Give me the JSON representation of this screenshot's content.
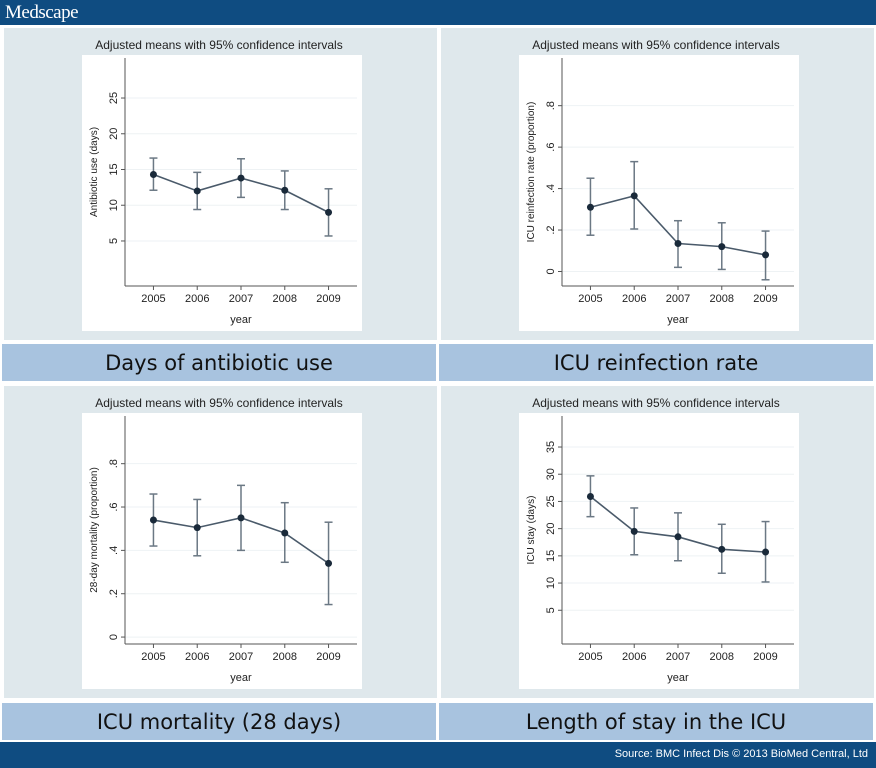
{
  "header": {
    "logo": "Medscape"
  },
  "footer": {
    "source": "Source: BMC Infect Dis © 2013 BioMed Central, Ltd"
  },
  "colors": {
    "header": "#0f4c81",
    "label_bar": "#a8c3df",
    "panel": "#dfe8ec",
    "line": "#4a5a6a",
    "marker": "#1a2a3a"
  },
  "labels": [
    "Days of antibiotic use",
    "ICU reinfection rate",
    "ICU mortality (28 days)",
    "Length of stay in the ICU"
  ],
  "chart_data": [
    {
      "type": "line",
      "title": "Adjusted means with 95% confidence intervals",
      "xlabel": "year",
      "ylabel": "Antibiotic use (days)",
      "x": [
        2005,
        2006,
        2007,
        2008,
        2009
      ],
      "values": [
        14.3,
        12.0,
        13.8,
        12.1,
        9.0
      ],
      "ci_low": [
        12.1,
        9.4,
        11.1,
        9.4,
        5.7
      ],
      "ci_high": [
        16.6,
        14.6,
        16.5,
        14.8,
        12.3
      ],
      "yticks": [
        5,
        10,
        15,
        20,
        25
      ],
      "ytick_labels": [
        "5",
        "10",
        "15",
        "20",
        "25"
      ],
      "ylim": [
        -1.3,
        30.6
      ],
      "xlim": [
        2004.35,
        2009.65
      ],
      "grid": true
    },
    {
      "type": "line",
      "title": "Adjusted means with 95% confidence intervals",
      "xlabel": "year",
      "ylabel": "ICU reinfection rate (proportion)",
      "x": [
        2005,
        2006,
        2007,
        2008,
        2009
      ],
      "values": [
        0.31,
        0.365,
        0.135,
        0.12,
        0.08
      ],
      "ci_low": [
        0.175,
        0.205,
        0.02,
        0.01,
        -0.04
      ],
      "ci_high": [
        0.45,
        0.53,
        0.245,
        0.235,
        0.195
      ],
      "yticks": [
        0,
        0.2,
        0.4,
        0.6,
        0.8
      ],
      "ytick_labels": [
        "0",
        ".2",
        ".4",
        ".6",
        ".8"
      ],
      "ylim": [
        -0.07,
        1.03
      ],
      "xlim": [
        2004.35,
        2009.65
      ],
      "grid": true
    },
    {
      "type": "line",
      "title": "Adjusted means with 95% confidence intervals",
      "xlabel": "year",
      "ylabel": "28-day mortality (proportion)",
      "x": [
        2005,
        2006,
        2007,
        2008,
        2009
      ],
      "values": [
        0.54,
        0.505,
        0.55,
        0.48,
        0.34
      ],
      "ci_low": [
        0.42,
        0.375,
        0.4,
        0.345,
        0.15
      ],
      "ci_high": [
        0.66,
        0.635,
        0.7,
        0.62,
        0.53
      ],
      "yticks": [
        0,
        0.2,
        0.4,
        0.6,
        0.8
      ],
      "ytick_labels": [
        "0",
        ".2",
        ".4",
        ".6",
        ".8"
      ],
      "ylim": [
        -0.032,
        1.02
      ],
      "xlim": [
        2004.35,
        2009.65
      ],
      "grid": true
    },
    {
      "type": "line",
      "title": "Adjusted means with 95% confidence intervals",
      "xlabel": "year",
      "ylabel": "ICU stay (days)",
      "x": [
        2005,
        2006,
        2007,
        2008,
        2009
      ],
      "values": [
        25.9,
        19.5,
        18.5,
        16.2,
        15.7
      ],
      "ci_low": [
        22.2,
        15.2,
        14.1,
        11.8,
        10.2
      ],
      "ci_high": [
        29.7,
        23.8,
        22.9,
        20.8,
        21.3
      ],
      "yticks": [
        5,
        10,
        15,
        20,
        25,
        30,
        35
      ],
      "ytick_labels": [
        "5",
        "10",
        "15",
        "20",
        "25",
        "30",
        "35"
      ],
      "ylim": [
        -1.2,
        40.7
      ],
      "xlim": [
        2004.35,
        2009.65
      ],
      "grid": true
    }
  ]
}
